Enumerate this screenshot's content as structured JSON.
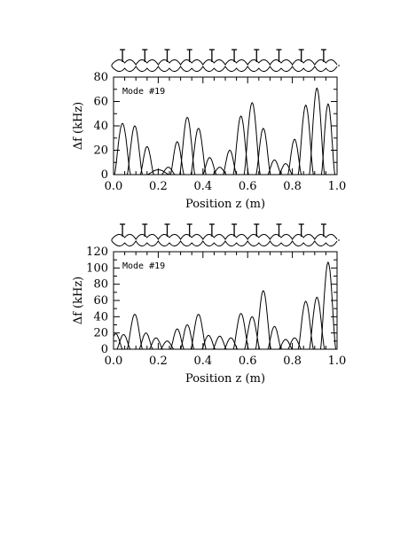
{
  "chart_data": [
    {
      "type": "line",
      "title": "",
      "annotation": "Mode #19",
      "xlabel": "Position  z  (m)",
      "ylabel": "Δf  (kHz)",
      "xlim": [
        0.0,
        1.0
      ],
      "ylim": [
        0,
        80
      ],
      "x_ticks": [
        0.0,
        0.2,
        0.4,
        0.6,
        0.8,
        1.0
      ],
      "x_tick_labels": [
        "0.0",
        "0.2",
        "0.4",
        "0.6",
        "0.8",
        "1.0"
      ],
      "y_ticks": [
        0,
        20,
        40,
        60,
        80
      ],
      "y_tick_labels": [
        "0",
        "20",
        "40",
        "60",
        "80"
      ],
      "grid": false,
      "structure": {
        "cells": 10,
        "rods": 10,
        "drift_tube_label": ""
      },
      "series": [
        {
          "peaks": [
            {
              "center": 0.04,
              "height": 42,
              "width": 0.036
            },
            {
              "center": 0.095,
              "height": 40,
              "width": 0.034
            },
            {
              "center": 0.15,
              "height": 23,
              "width": 0.03
            },
            {
              "center": 0.2,
              "height": 4,
              "width": 0.05
            },
            {
              "center": 0.245,
              "height": 6,
              "width": 0.03
            },
            {
              "center": 0.285,
              "height": 27,
              "width": 0.03
            },
            {
              "center": 0.33,
              "height": 47,
              "width": 0.034
            },
            {
              "center": 0.38,
              "height": 38,
              "width": 0.034
            },
            {
              "center": 0.43,
              "height": 14,
              "width": 0.03
            },
            {
              "center": 0.475,
              "height": 6,
              "width": 0.03
            },
            {
              "center": 0.52,
              "height": 20,
              "width": 0.03
            },
            {
              "center": 0.57,
              "height": 48,
              "width": 0.034
            },
            {
              "center": 0.62,
              "height": 59,
              "width": 0.036
            },
            {
              "center": 0.67,
              "height": 38,
              "width": 0.032
            },
            {
              "center": 0.72,
              "height": 12,
              "width": 0.03
            },
            {
              "center": 0.77,
              "height": 9,
              "width": 0.03
            },
            {
              "center": 0.81,
              "height": 29,
              "width": 0.03
            },
            {
              "center": 0.86,
              "height": 57,
              "width": 0.034
            },
            {
              "center": 0.91,
              "height": 71,
              "width": 0.034
            },
            {
              "center": 0.96,
              "height": 58,
              "width": 0.03
            }
          ]
        }
      ]
    },
    {
      "type": "line",
      "title": "",
      "annotation": "Mode #19",
      "xlabel": "Position  z  (m)",
      "ylabel": "Δf  (kHz)",
      "xlim": [
        0.0,
        1.0
      ],
      "ylim": [
        0,
        120
      ],
      "x_ticks": [
        0.0,
        0.2,
        0.4,
        0.6,
        0.8,
        1.0
      ],
      "x_tick_labels": [
        "0.0",
        "0.2",
        "0.4",
        "0.6",
        "0.8",
        "1.0"
      ],
      "y_ticks": [
        0,
        20,
        40,
        60,
        80,
        100,
        120
      ],
      "y_tick_labels": [
        "0",
        "20",
        "40",
        "60",
        "80",
        "100",
        "120"
      ],
      "grid": false,
      "structure": {
        "cells": 10,
        "rods": 10,
        "drift_tube_label": ""
      },
      "series": [
        {
          "peaks": [
            {
              "center": 0.01,
              "height": 19,
              "width": 0.03
            },
            {
              "center": 0.045,
              "height": 18,
              "width": 0.03
            },
            {
              "center": 0.095,
              "height": 43,
              "width": 0.034
            },
            {
              "center": 0.145,
              "height": 20,
              "width": 0.03
            },
            {
              "center": 0.19,
              "height": 14,
              "width": 0.03
            },
            {
              "center": 0.24,
              "height": 10,
              "width": 0.03
            },
            {
              "center": 0.285,
              "height": 25,
              "width": 0.03
            },
            {
              "center": 0.33,
              "height": 30,
              "width": 0.03
            },
            {
              "center": 0.38,
              "height": 43,
              "width": 0.034
            },
            {
              "center": 0.425,
              "height": 17,
              "width": 0.03
            },
            {
              "center": 0.475,
              "height": 16,
              "width": 0.03
            },
            {
              "center": 0.525,
              "height": 14,
              "width": 0.03
            },
            {
              "center": 0.57,
              "height": 44,
              "width": 0.034
            },
            {
              "center": 0.62,
              "height": 40,
              "width": 0.034
            },
            {
              "center": 0.67,
              "height": 72,
              "width": 0.034
            },
            {
              "center": 0.72,
              "height": 28,
              "width": 0.03
            },
            {
              "center": 0.77,
              "height": 12,
              "width": 0.03
            },
            {
              "center": 0.81,
              "height": 14,
              "width": 0.03
            },
            {
              "center": 0.86,
              "height": 59,
              "width": 0.034
            },
            {
              "center": 0.91,
              "height": 64,
              "width": 0.034
            },
            {
              "center": 0.96,
              "height": 107,
              "width": 0.034
            }
          ]
        }
      ]
    }
  ]
}
